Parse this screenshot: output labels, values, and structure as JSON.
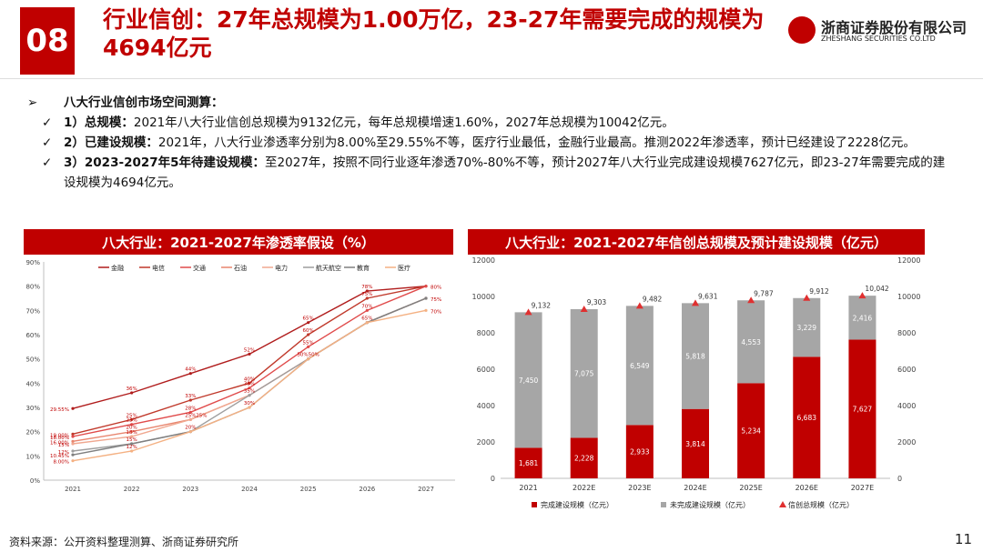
{
  "header": {
    "badge": "08",
    "title": "行业信创：27年总规模为1.00万亿，23-27年需要完成的规模为4694亿元",
    "company_cn": "浙商证券股份有限公司",
    "company_en": "ZHESHANG SECURITIES CO.LTD"
  },
  "bullets": {
    "main": "八大行业信创市场空间测算：",
    "items": [
      {
        "label": "1）总规模：",
        "text": "2021年八大行业信创总规模为9132亿元，每年总规模增速1.60%，2027年总规模为10042亿元。"
      },
      {
        "label": "2）已建设规模：",
        "text": "2021年，八大行业渗透率分别为8.00%至29.55%不等，医疗行业最低，金融行业最高。推测2022年渗透率，预计已经建设了2228亿元。"
      },
      {
        "label": "3）2023-2027年5年待建设规模：",
        "text": "至2027年，按照不同行业逐年渗透70%-80%不等，预计2027年八大行业完成建设规模7627亿元，即23-27年需要完成的建设规模为4694亿元。"
      }
    ]
  },
  "footer": {
    "source": "资料来源：公开资料整理测算、浙商证券研究所",
    "page": "11"
  },
  "colors": {
    "accent": "#c00000",
    "gray_bar": "#a6a6a6"
  },
  "chart_data": [
    {
      "type": "line",
      "title": "八大行业：2021-2027年渗透率假设（%）",
      "x": [
        "2021",
        "2022",
        "2023",
        "2024",
        "2025",
        "2026",
        "2027"
      ],
      "y_ticks": [
        "0%",
        "10%",
        "20%",
        "30%",
        "40%",
        "50%",
        "60%",
        "70%",
        "80%",
        "90%"
      ],
      "ylim": [
        0,
        90
      ],
      "legend_position": "top",
      "series": [
        {
          "name": "金融",
          "color": "#b01c1c",
          "values": [
            29.55,
            36,
            44,
            52,
            65,
            78,
            80
          ]
        },
        {
          "name": "电信",
          "color": "#c0392b",
          "values": [
            19,
            25,
            33,
            40,
            60,
            75,
            80
          ]
        },
        {
          "name": "交通",
          "color": "#e04b4b",
          "values": [
            18,
            23,
            28,
            38,
            55,
            70,
            80
          ]
        },
        {
          "name": "石油",
          "color": "#e8856e",
          "values": [
            16,
            20,
            25,
            35,
            50,
            65,
            75
          ]
        },
        {
          "name": "电力",
          "color": "#f0a890",
          "values": [
            15,
            18,
            25,
            35,
            50,
            65,
            75
          ]
        },
        {
          "name": "航天航空",
          "color": "#9e9e9e",
          "values": [
            12,
            15,
            20,
            35,
            50,
            65,
            75
          ]
        },
        {
          "name": "教育",
          "color": "#7f7f7f",
          "values": [
            10.45,
            15,
            20,
            30,
            50,
            65,
            75
          ]
        },
        {
          "name": "医疗",
          "color": "#f4b183",
          "values": [
            8,
            12,
            20,
            30,
            50,
            65,
            70
          ]
        }
      ],
      "data_labels": [
        {
          "x": "2021",
          "y": 29.55,
          "text": "29.55%"
        },
        {
          "x": "2021",
          "y": 19,
          "text": "19.00%"
        },
        {
          "x": "2021",
          "y": 18,
          "text": "18.00%"
        },
        {
          "x": "2021",
          "y": 16,
          "text": "16.00%"
        },
        {
          "x": "2021",
          "y": 15,
          "text": "15%"
        },
        {
          "x": "2021",
          "y": 12,
          "text": "12%"
        },
        {
          "x": "2021",
          "y": 10.45,
          "text": "10.45%"
        },
        {
          "x": "2021",
          "y": 8,
          "text": "8.00%"
        },
        {
          "x": "2022",
          "y": 36,
          "text": "36%"
        },
        {
          "x": "2022",
          "y": 25,
          "text": "25%"
        },
        {
          "x": "2022",
          "y": 23,
          "text": "23%"
        },
        {
          "x": "2022",
          "y": 20,
          "text": "20%"
        },
        {
          "x": "2022",
          "y": 18,
          "text": "18%"
        },
        {
          "x": "2022",
          "y": 15,
          "text": "15%"
        },
        {
          "x": "2022",
          "y": 12,
          "text": "12%"
        },
        {
          "x": "2023",
          "y": 44,
          "text": "44%"
        },
        {
          "x": "2023",
          "y": 33,
          "text": "33%"
        },
        {
          "x": "2023",
          "y": 28,
          "text": "28%"
        },
        {
          "x": "2023",
          "y": 25,
          "text": "25%"
        },
        {
          "x": "2023",
          "y": 25,
          "text": "25%"
        },
        {
          "x": "2023",
          "y": 20,
          "text": "20%"
        },
        {
          "x": "2024",
          "y": 52,
          "text": "52%"
        },
        {
          "x": "2024",
          "y": 40,
          "text": "40%"
        },
        {
          "x": "2024",
          "y": 38,
          "text": "38%"
        },
        {
          "x": "2024",
          "y": 35,
          "text": "35%"
        },
        {
          "x": "2024",
          "y": 30,
          "text": "30%"
        },
        {
          "x": "2025",
          "y": 65,
          "text": "65%"
        },
        {
          "x": "2025",
          "y": 60,
          "text": "60%"
        },
        {
          "x": "2025",
          "y": 55,
          "text": "55%"
        },
        {
          "x": "2025",
          "y": 50,
          "text": "50%50%"
        },
        {
          "x": "2026",
          "y": 78,
          "text": "78%"
        },
        {
          "x": "2026",
          "y": 75,
          "text": "75%"
        },
        {
          "x": "2026",
          "y": 70,
          "text": "70%"
        },
        {
          "x": "2026",
          "y": 65,
          "text": "65%"
        },
        {
          "x": "2027",
          "y": 80,
          "text": "80%"
        },
        {
          "x": "2027",
          "y": 75,
          "text": "75%"
        },
        {
          "x": "2027",
          "y": 70,
          "text": "70%"
        }
      ]
    },
    {
      "type": "bar",
      "title": "八大行业：2021-2027年信创总规模及预计建设规模（亿元）",
      "categories": [
        "2021",
        "2022E",
        "2023E",
        "2024E",
        "2025E",
        "2026E",
        "2027E"
      ],
      "ylim": [
        0,
        12000
      ],
      "y_ticks": [
        0,
        2000,
        4000,
        6000,
        8000,
        10000,
        12000
      ],
      "legend_position": "bottom",
      "series": [
        {
          "name": "完成建设规模（亿元）",
          "kind": "stacked-bar",
          "color": "#c00000",
          "values": [
            1681,
            2228,
            2933,
            3814,
            5234,
            6683,
            7627
          ]
        },
        {
          "name": "未完成建设规模（亿元）",
          "kind": "stacked-bar",
          "color": "#a6a6a6",
          "values": [
            7450,
            7075,
            6549,
            5818,
            4553,
            3229,
            2416
          ]
        },
        {
          "name": "信创总规模（亿元）",
          "kind": "marker",
          "color": "#e03030",
          "values": [
            9132,
            9303,
            9482,
            9631,
            9787,
            9912,
            10042
          ]
        }
      ],
      "completed_labels": [
        "1,681",
        "2,228",
        "2,933",
        "3,814",
        "5,234",
        "6,683",
        "7,627"
      ],
      "remaining_labels": [
        "7,450",
        "7,075",
        "6,549",
        "5,818",
        "4,553",
        "3,229",
        "2,416"
      ],
      "total_labels": [
        "9,132",
        "9,303",
        "9,482",
        "9,631",
        "9,787",
        "9,912",
        "10,042"
      ]
    }
  ]
}
